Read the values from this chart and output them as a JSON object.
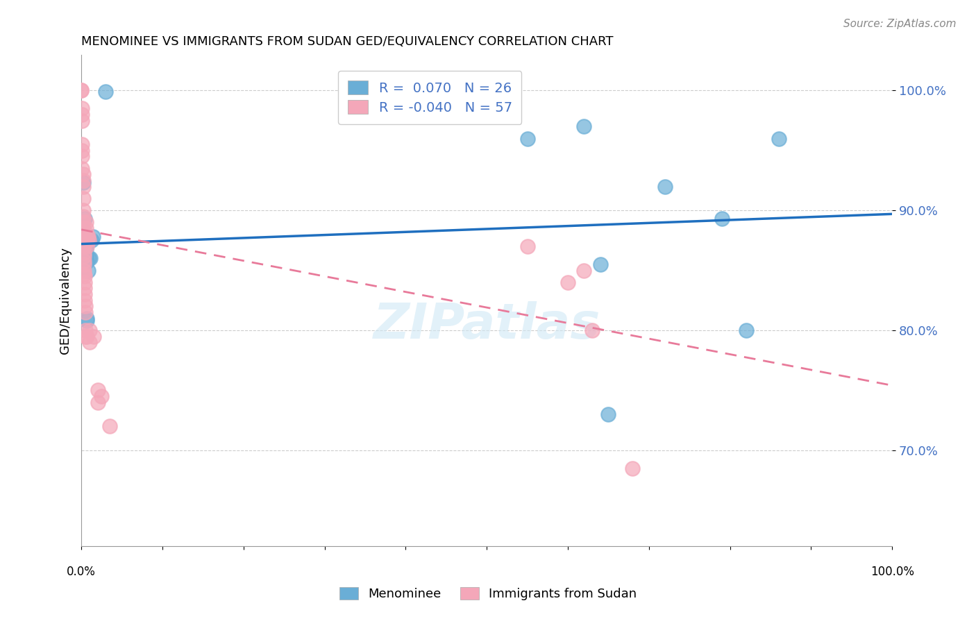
{
  "title": "MENOMINEE VS IMMIGRANTS FROM SUDAN GED/EQUIVALENCY CORRELATION CHART",
  "source": "Source: ZipAtlas.com",
  "ylabel": "GED/Equivalency",
  "ytick_labels": [
    "100.0%",
    "90.0%",
    "80.0%",
    "70.0%"
  ],
  "ytick_values": [
    1.0,
    0.9,
    0.8,
    0.7
  ],
  "xlim": [
    0.0,
    1.0
  ],
  "ylim": [
    0.62,
    1.03
  ],
  "legend_blue_R": "R =  0.070",
  "legend_blue_N": "N = 26",
  "legend_pink_R": "R = -0.040",
  "legend_pink_N": "N = 57",
  "blue_color": "#6aaed6",
  "pink_color": "#f4a7b9",
  "trend_blue_color": "#1f6fbf",
  "trend_pink_color": "#e87a9a",
  "watermark": "ZIPatlas",
  "blue_trend_slope": 0.025,
  "blue_trend_intercept": 0.872,
  "pink_trend_slope": -0.13,
  "pink_trend_intercept": 0.884,
  "blue_scatter": [
    [
      0.0,
      0.877
    ],
    [
      0.002,
      0.923
    ],
    [
      0.003,
      0.883
    ],
    [
      0.004,
      0.893
    ],
    [
      0.005,
      0.878
    ],
    [
      0.005,
      0.875
    ],
    [
      0.006,
      0.868
    ],
    [
      0.006,
      0.862
    ],
    [
      0.007,
      0.857
    ],
    [
      0.007,
      0.81
    ],
    [
      0.007,
      0.808
    ],
    [
      0.008,
      0.85
    ],
    [
      0.009,
      0.86
    ],
    [
      0.01,
      0.876
    ],
    [
      0.011,
      0.86
    ],
    [
      0.013,
      0.875
    ],
    [
      0.014,
      0.878
    ],
    [
      0.03,
      0.999
    ],
    [
      0.55,
      0.96
    ],
    [
      0.62,
      0.97
    ],
    [
      0.64,
      0.855
    ],
    [
      0.65,
      0.73
    ],
    [
      0.72,
      0.92
    ],
    [
      0.79,
      0.893
    ],
    [
      0.82,
      0.8
    ],
    [
      0.86,
      0.96
    ]
  ],
  "pink_scatter": [
    [
      0.0,
      1.0
    ],
    [
      0.0,
      1.0
    ],
    [
      0.001,
      0.985
    ],
    [
      0.001,
      0.98
    ],
    [
      0.001,
      0.975
    ],
    [
      0.001,
      0.955
    ],
    [
      0.001,
      0.95
    ],
    [
      0.001,
      0.945
    ],
    [
      0.001,
      0.935
    ],
    [
      0.002,
      0.93
    ],
    [
      0.002,
      0.925
    ],
    [
      0.002,
      0.92
    ],
    [
      0.002,
      0.91
    ],
    [
      0.002,
      0.9
    ],
    [
      0.002,
      0.895
    ],
    [
      0.002,
      0.89
    ],
    [
      0.002,
      0.885
    ],
    [
      0.002,
      0.882
    ],
    [
      0.002,
      0.878
    ],
    [
      0.002,
      0.875
    ],
    [
      0.002,
      0.872
    ],
    [
      0.003,
      0.87
    ],
    [
      0.003,
      0.865
    ],
    [
      0.003,
      0.862
    ],
    [
      0.003,
      0.858
    ],
    [
      0.003,
      0.855
    ],
    [
      0.003,
      0.85
    ],
    [
      0.003,
      0.847
    ],
    [
      0.004,
      0.845
    ],
    [
      0.004,
      0.84
    ],
    [
      0.004,
      0.835
    ],
    [
      0.004,
      0.83
    ],
    [
      0.004,
      0.825
    ],
    [
      0.005,
      0.82
    ],
    [
      0.005,
      0.815
    ],
    [
      0.005,
      0.8
    ],
    [
      0.005,
      0.795
    ],
    [
      0.006,
      0.89
    ],
    [
      0.006,
      0.885
    ],
    [
      0.007,
      0.88
    ],
    [
      0.007,
      0.875
    ],
    [
      0.007,
      0.87
    ],
    [
      0.007,
      0.795
    ],
    [
      0.008,
      0.878
    ],
    [
      0.009,
      0.875
    ],
    [
      0.01,
      0.8
    ],
    [
      0.01,
      0.79
    ],
    [
      0.015,
      0.795
    ],
    [
      0.02,
      0.75
    ],
    [
      0.02,
      0.74
    ],
    [
      0.025,
      0.745
    ],
    [
      0.035,
      0.72
    ],
    [
      0.55,
      0.87
    ],
    [
      0.6,
      0.84
    ],
    [
      0.62,
      0.85
    ],
    [
      0.63,
      0.8
    ],
    [
      0.68,
      0.685
    ]
  ]
}
